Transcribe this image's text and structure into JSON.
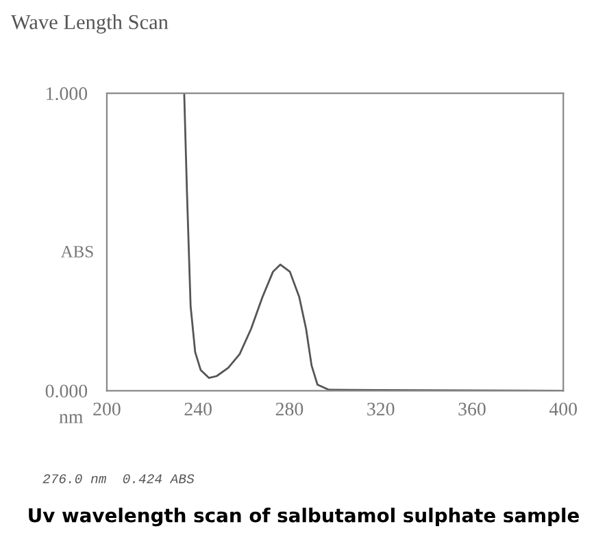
{
  "chart_data": {
    "type": "line",
    "title": "Wave Length Scan",
    "xlabel": "nm",
    "ylabel": "ABS",
    "x": [
      233.9,
      235.1,
      236.7,
      238.7,
      241.1,
      244.7,
      248.1,
      253.2,
      258.2,
      263.2,
      268.2,
      272.8,
      276.0,
      280.2,
      284.3,
      287.3,
      289.7,
      292.3,
      297.3,
      320,
      360,
      400
    ],
    "series": [
      {
        "color": "#555555",
        "values": [
          1.0,
          0.67,
          0.285,
          0.13,
          0.07,
          0.043,
          0.049,
          0.077,
          0.123,
          0.208,
          0.315,
          0.4,
          0.424,
          0.4,
          0.315,
          0.208,
          0.085,
          0.02,
          0.003,
          0.002,
          0.001,
          0.0
        ]
      }
    ],
    "xlim": [
      200,
      400
    ],
    "xticks": [
      200,
      240,
      280,
      320,
      360,
      400
    ],
    "ylim": [
      0,
      1
    ],
    "yticks": [
      {
        "value": 0,
        "label": "0.000"
      },
      {
        "value": 1,
        "label": "1.000"
      }
    ],
    "grid": false,
    "legend": false,
    "marker": "none",
    "line_style": "solid",
    "annotations": [
      "276.0 nm  0.424 ABS",
      "Uv wavelength scan of salbutamol sulphate sample"
    ]
  }
}
